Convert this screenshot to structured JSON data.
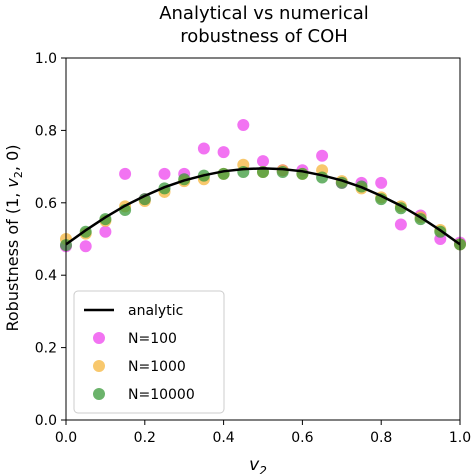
{
  "chart_data": {
    "type": "scatter",
    "title": [
      "Analytical vs numerical",
      "robustness of COH"
    ],
    "xlabel": "v",
    "xlabel_sub": "2",
    "ylabel_parts": [
      "Robustness of (1, ",
      "v",
      "2",
      ", 0)"
    ],
    "xlim": [
      0.0,
      1.0
    ],
    "ylim": [
      0.0,
      1.0
    ],
    "xticks": [
      "0.0",
      "0.2",
      "0.4",
      "0.6",
      "0.8",
      "1.0"
    ],
    "yticks": [
      "0.0",
      "0.2",
      "0.4",
      "0.6",
      "0.8",
      "1.0"
    ],
    "grid": false,
    "legend_position": "lower-left",
    "analytic": {
      "name": "analytic",
      "color": "#000000",
      "x": [
        0.0,
        0.05,
        0.1,
        0.15,
        0.2,
        0.25,
        0.3,
        0.35,
        0.4,
        0.45,
        0.5,
        0.55,
        0.6,
        0.65,
        0.7,
        0.75,
        0.8,
        0.85,
        0.9,
        0.95,
        1.0
      ],
      "y": [
        0.485,
        0.524,
        0.56,
        0.592,
        0.619,
        0.643,
        0.662,
        0.676,
        0.687,
        0.693,
        0.695,
        0.693,
        0.687,
        0.676,
        0.662,
        0.643,
        0.619,
        0.592,
        0.56,
        0.524,
        0.485
      ]
    },
    "series": [
      {
        "name": "N=100",
        "color": "#ee44ee",
        "x": [
          0.0,
          0.05,
          0.1,
          0.15,
          0.2,
          0.25,
          0.3,
          0.35,
          0.4,
          0.45,
          0.5,
          0.55,
          0.6,
          0.65,
          0.7,
          0.75,
          0.8,
          0.85,
          0.9,
          0.95,
          1.0
        ],
        "y": [
          0.48,
          0.48,
          0.52,
          0.68,
          0.61,
          0.68,
          0.68,
          0.75,
          0.74,
          0.815,
          0.715,
          0.69,
          0.69,
          0.73,
          0.655,
          0.655,
          0.655,
          0.54,
          0.565,
          0.5,
          0.49
        ]
      },
      {
        "name": "N=1000",
        "color": "#f5b63c",
        "x": [
          0.0,
          0.05,
          0.1,
          0.15,
          0.2,
          0.25,
          0.3,
          0.35,
          0.4,
          0.45,
          0.5,
          0.55,
          0.6,
          0.65,
          0.7,
          0.75,
          0.8,
          0.85,
          0.9,
          0.95,
          1.0
        ],
        "y": [
          0.5,
          0.515,
          0.55,
          0.59,
          0.605,
          0.63,
          0.66,
          0.665,
          0.68,
          0.705,
          0.685,
          0.69,
          0.68,
          0.69,
          0.66,
          0.64,
          0.615,
          0.59,
          0.56,
          0.525,
          0.485
        ]
      },
      {
        "name": "N=10000",
        "color": "#3a9a3a",
        "x": [
          0.0,
          0.05,
          0.1,
          0.15,
          0.2,
          0.25,
          0.3,
          0.35,
          0.4,
          0.45,
          0.5,
          0.55,
          0.6,
          0.65,
          0.7,
          0.75,
          0.8,
          0.85,
          0.9,
          0.95,
          1.0
        ],
        "y": [
          0.483,
          0.52,
          0.555,
          0.58,
          0.61,
          0.64,
          0.665,
          0.675,
          0.68,
          0.685,
          0.685,
          0.685,
          0.68,
          0.67,
          0.655,
          0.645,
          0.61,
          0.585,
          0.555,
          0.52,
          0.485
        ]
      }
    ]
  }
}
